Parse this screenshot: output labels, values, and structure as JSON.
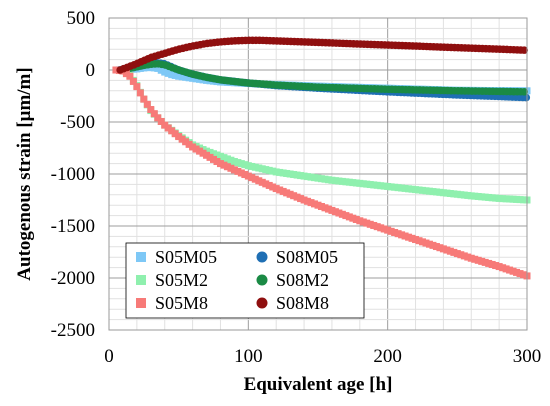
{
  "chart_data": {
    "type": "scatter",
    "xlabel": "Equivalent age [h]",
    "ylabel": "Autogenous strain  [μm/m]",
    "xlim": [
      0,
      300
    ],
    "ylim": [
      -2500,
      500
    ],
    "x_ticks": [
      "0",
      "100",
      "200",
      "300"
    ],
    "y_ticks": [
      "500",
      "0",
      "-500",
      "-1000",
      "-1500",
      "-2000",
      "-2500"
    ],
    "grid": "major and minor",
    "legend_placement": "bottom-left",
    "series": [
      {
        "name": "S05M05",
        "marker": "square",
        "color": "#7ec8f6",
        "points": [
          [
            5,
            0
          ],
          [
            10,
            2
          ],
          [
            15,
            5
          ],
          [
            20,
            10
          ],
          [
            25,
            20
          ],
          [
            30,
            25
          ],
          [
            35,
            15
          ],
          [
            40,
            -20
          ],
          [
            45,
            -45
          ],
          [
            50,
            -60
          ],
          [
            60,
            -80
          ],
          [
            70,
            -100
          ],
          [
            80,
            -115
          ],
          [
            100,
            -130
          ],
          [
            120,
            -140
          ],
          [
            150,
            -155
          ],
          [
            200,
            -175
          ],
          [
            250,
            -195
          ],
          [
            300,
            -200
          ]
        ]
      },
      {
        "name": "S08M05",
        "marker": "circle",
        "color": "#1f6fb4",
        "points": [
          [
            7,
            0
          ],
          [
            12,
            10
          ],
          [
            18,
            25
          ],
          [
            25,
            45
          ],
          [
            30,
            60
          ],
          [
            35,
            70
          ],
          [
            40,
            60
          ],
          [
            45,
            30
          ],
          [
            50,
            0
          ],
          [
            60,
            -40
          ],
          [
            70,
            -70
          ],
          [
            80,
            -95
          ],
          [
            100,
            -125
          ],
          [
            120,
            -150
          ],
          [
            150,
            -175
          ],
          [
            200,
            -210
          ],
          [
            250,
            -240
          ],
          [
            300,
            -265
          ]
        ]
      },
      {
        "name": "S05M2",
        "marker": "square",
        "color": "#8ff0ae",
        "points": [
          [
            5,
            0
          ],
          [
            10,
            -5
          ],
          [
            15,
            -50
          ],
          [
            20,
            -150
          ],
          [
            25,
            -280
          ],
          [
            30,
            -390
          ],
          [
            35,
            -460
          ],
          [
            40,
            -530
          ],
          [
            50,
            -630
          ],
          [
            60,
            -720
          ],
          [
            70,
            -780
          ],
          [
            80,
            -830
          ],
          [
            90,
            -880
          ],
          [
            100,
            -920
          ],
          [
            120,
            -980
          ],
          [
            140,
            -1020
          ],
          [
            160,
            -1060
          ],
          [
            180,
            -1090
          ],
          [
            200,
            -1120
          ],
          [
            220,
            -1150
          ],
          [
            240,
            -1180
          ],
          [
            260,
            -1210
          ],
          [
            280,
            -1235
          ],
          [
            300,
            -1250
          ]
        ]
      },
      {
        "name": "S08M2",
        "marker": "circle",
        "color": "#1a8a45",
        "points": [
          [
            8,
            0
          ],
          [
            12,
            10
          ],
          [
            18,
            25
          ],
          [
            25,
            45
          ],
          [
            30,
            55
          ],
          [
            35,
            60
          ],
          [
            40,
            50
          ],
          [
            45,
            25
          ],
          [
            50,
            0
          ],
          [
            60,
            -40
          ],
          [
            70,
            -70
          ],
          [
            80,
            -95
          ],
          [
            100,
            -125
          ],
          [
            120,
            -145
          ],
          [
            150,
            -165
          ],
          [
            200,
            -185
          ],
          [
            250,
            -200
          ],
          [
            300,
            -210
          ]
        ]
      },
      {
        "name": "S05M8",
        "marker": "square",
        "color": "#f77a78",
        "points": [
          [
            5,
            0
          ],
          [
            10,
            -10
          ],
          [
            15,
            -60
          ],
          [
            20,
            -160
          ],
          [
            25,
            -280
          ],
          [
            30,
            -380
          ],
          [
            35,
            -460
          ],
          [
            40,
            -530
          ],
          [
            50,
            -640
          ],
          [
            60,
            -740
          ],
          [
            70,
            -820
          ],
          [
            80,
            -900
          ],
          [
            90,
            -960
          ],
          [
            100,
            -1020
          ],
          [
            120,
            -1140
          ],
          [
            140,
            -1250
          ],
          [
            160,
            -1350
          ],
          [
            180,
            -1450
          ],
          [
            200,
            -1540
          ],
          [
            220,
            -1630
          ],
          [
            240,
            -1720
          ],
          [
            260,
            -1810
          ],
          [
            280,
            -1890
          ],
          [
            300,
            -1980
          ]
        ]
      },
      {
        "name": "S08M8",
        "marker": "circle",
        "color": "#8f0f0f",
        "points": [
          [
            8,
            0
          ],
          [
            12,
            20
          ],
          [
            18,
            50
          ],
          [
            25,
            90
          ],
          [
            30,
            120
          ],
          [
            40,
            160
          ],
          [
            50,
            200
          ],
          [
            60,
            230
          ],
          [
            70,
            255
          ],
          [
            80,
            270
          ],
          [
            90,
            280
          ],
          [
            100,
            285
          ],
          [
            110,
            285
          ],
          [
            120,
            280
          ],
          [
            140,
            270
          ],
          [
            160,
            260
          ],
          [
            180,
            250
          ],
          [
            200,
            240
          ],
          [
            220,
            230
          ],
          [
            240,
            220
          ],
          [
            260,
            210
          ],
          [
            280,
            200
          ],
          [
            300,
            190
          ]
        ]
      }
    ]
  }
}
